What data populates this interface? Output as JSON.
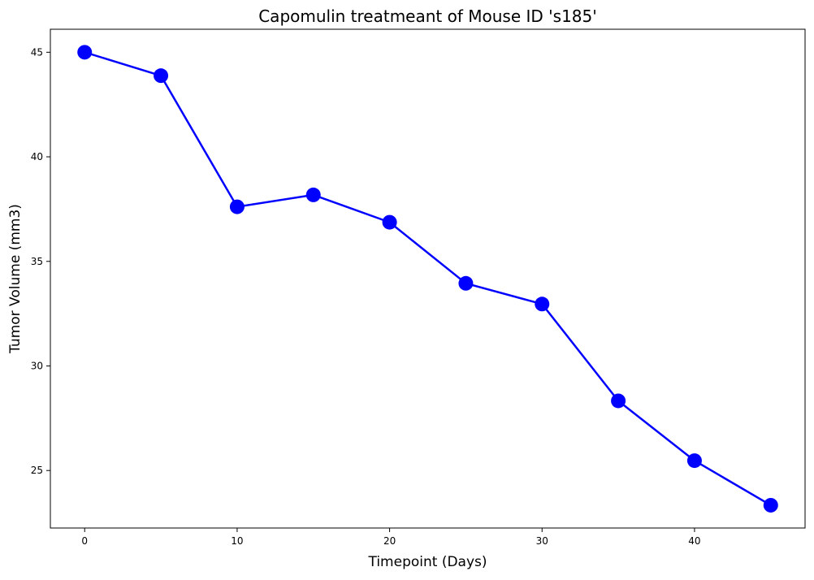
{
  "chart_data": {
    "type": "line",
    "title": "Capomulin treatmeant of Mouse ID 's185'",
    "xlabel": "Timepoint (Days)",
    "ylabel": "Tumor Volume (mm3)",
    "xlim": [
      -2.25,
      47.25
    ],
    "ylim": [
      22.25,
      46.1
    ],
    "x_ticks": [
      0,
      10,
      20,
      30,
      40
    ],
    "y_ticks": [
      25,
      30,
      35,
      40,
      45
    ],
    "grid": false,
    "legend": "none",
    "series": [
      {
        "color": "#0000ff",
        "marker": "circle",
        "x": [
          0,
          5,
          10,
          15,
          20,
          25,
          30,
          35,
          40,
          45
        ],
        "y": [
          45.0,
          43.88,
          37.61,
          38.18,
          36.87,
          33.95,
          32.96,
          28.33,
          25.47,
          23.34
        ]
      }
    ]
  }
}
